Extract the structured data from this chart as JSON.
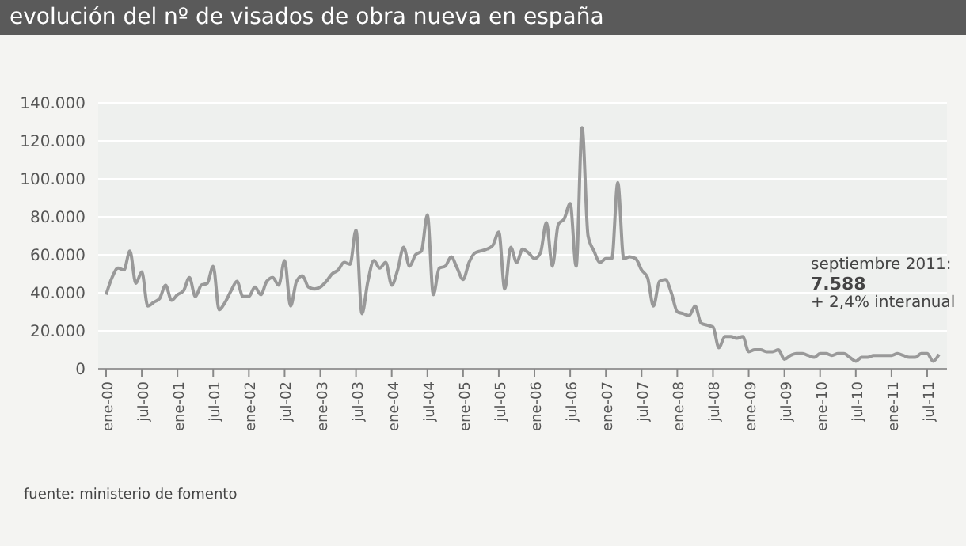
{
  "chart_data": {
    "type": "line",
    "title": "evolución del nº de visados de obra nueva en españa",
    "categories": [
      "ene-00",
      null,
      null,
      null,
      null,
      null,
      "jul-00",
      null,
      null,
      null,
      null,
      null,
      "ene-01",
      null,
      null,
      null,
      null,
      null,
      "jul-01",
      null,
      null,
      null,
      null,
      null,
      "ene-02",
      null,
      null,
      null,
      null,
      null,
      "jul-02",
      null,
      null,
      null,
      null,
      null,
      "ene-03",
      null,
      null,
      null,
      null,
      null,
      "jul-03",
      null,
      null,
      null,
      null,
      null,
      "ene-04",
      null,
      null,
      null,
      null,
      null,
      "jul-04",
      null,
      null,
      null,
      null,
      null,
      "ene-05",
      null,
      null,
      null,
      null,
      null,
      "jul-05",
      null,
      null,
      null,
      null,
      null,
      "ene-06",
      null,
      null,
      null,
      null,
      null,
      "jul-06",
      null,
      null,
      null,
      null,
      null,
      "ene-07",
      null,
      null,
      null,
      null,
      null,
      "jul-07",
      null,
      null,
      null,
      null,
      null,
      "ene-08",
      null,
      null,
      null,
      null,
      null,
      "jul-08",
      null,
      null,
      null,
      null,
      null,
      "ene-09",
      null,
      null,
      null,
      null,
      null,
      "jul-09",
      null,
      null,
      null,
      null,
      null,
      "ene-10",
      null,
      null,
      null,
      null,
      null,
      "jul-10",
      null,
      null,
      null,
      null,
      null,
      "ene-11",
      null,
      null,
      null,
      null,
      null,
      "jul-11",
      null,
      null
    ],
    "series": [
      {
        "color": "#999999",
        "values": [
          39000,
          48000,
          53000,
          52000,
          62000,
          45000,
          51000,
          33000,
          35000,
          37000,
          44000,
          36000,
          39000,
          41000,
          48000,
          38000,
          44000,
          45000,
          54000,
          31000,
          35000,
          41000,
          46000,
          38000,
          38000,
          43000,
          39000,
          46000,
          48000,
          44000,
          57000,
          33000,
          46000,
          49000,
          43000,
          42000,
          43000,
          46000,
          50000,
          52000,
          56000,
          55000,
          73000,
          29000,
          46000,
          57000,
          53000,
          56000,
          44000,
          52000,
          64000,
          54000,
          60000,
          62000,
          81000,
          39000,
          53000,
          54000,
          59000,
          53000,
          47000,
          56000,
          61000,
          62000,
          63000,
          65000,
          72000,
          42000,
          64000,
          56000,
          63000,
          61000,
          58000,
          61000,
          77000,
          54000,
          76000,
          79000,
          87000,
          54000,
          127000,
          70000,
          62000,
          56000,
          58000,
          58000,
          98000,
          58000,
          59000,
          58000,
          52000,
          48000,
          33000,
          46000,
          47000,
          40000,
          30000,
          29000,
          28000,
          33000,
          24000,
          23000,
          22000,
          11000,
          17000,
          17000,
          16000,
          17000,
          9000,
          10000,
          10000,
          9000,
          9000,
          10000,
          5000,
          7000,
          8000,
          8000,
          7000,
          6000,
          8000,
          8000,
          7000,
          8000,
          8000,
          6000,
          4000,
          6000,
          6000,
          7000,
          7000,
          7000,
          7000,
          8000,
          7000,
          6000,
          6000,
          8000,
          8000,
          4000,
          7588
        ]
      }
    ],
    "ylim": [
      0,
      140000
    ],
    "yticks": [
      0,
      {
        "value": 20000,
        "label": "20.000"
      },
      {
        "value": 40000,
        "label": "40.000"
      },
      {
        "value": 60000,
        "label": "60.000"
      },
      {
        "value": 80000,
        "label": "80.000"
      },
      {
        "value": 100000,
        "label": "100.000"
      },
      {
        "value": 120000,
        "label": "120.000"
      },
      {
        "value": 140000,
        "label": "140.000"
      }
    ],
    "grid": "y",
    "marker": "none",
    "line_style": "solid",
    "annotations": [
      "septiembre 2011:",
      "7.588",
      "+ 2,4% interanual",
      "fuente: ministerio de fomento"
    ]
  }
}
